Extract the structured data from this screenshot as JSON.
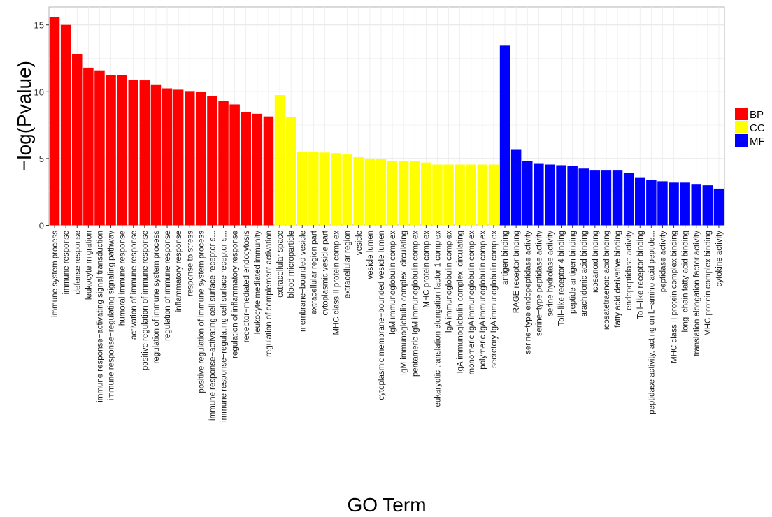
{
  "chart_data": {
    "type": "bar",
    "title": "",
    "xlabel": "GO Term",
    "ylabel": "−log(Pvalue)",
    "ylim": [
      0,
      16
    ],
    "yticks": [
      0,
      5,
      10,
      15
    ],
    "grid": true,
    "legend": {
      "placement": "right",
      "entries": [
        {
          "name": "BP",
          "color": "#ff0000"
        },
        {
          "name": "CC",
          "color": "#ffff00"
        },
        {
          "name": "MF",
          "color": "#0000ff"
        }
      ]
    },
    "categories": [
      "immune system process",
      "immune response",
      "defense response",
      "leukocyte migration",
      "immune response−activating signal transduction",
      "immune response−regulating signaling pathway",
      "humoral immune response",
      "activation of immune response",
      "positive regulation of immune response",
      "regulation of immune system process",
      "regulation of immune response",
      "inflammatory response",
      "response to stress",
      "positive regulation of immune system process",
      "immune response−activating cell surface receptor s...",
      "immune response−regulating cell surface receptor s...",
      "regulation of inflammatory response",
      "receptor−mediated endocytosis",
      "leukocyte mediated immunity",
      "regulation of complement activation",
      "extracellular space",
      "blood microparticle",
      "membrane−bounded vesicle",
      "extracellular region part",
      "cytoplasmic vesicle part",
      "MHC class II protein complex",
      "extracellular region",
      "vesicle",
      "vesicle lumen",
      "cytoplasmic membrane−bounded vesicle lumen",
      "IgM immunoglobulin complex",
      "IgM immunoglobulin complex, circulating",
      "pentameric IgM immunoglobulin complex",
      "MHC protein complex",
      "eukaryotic translation elongation factor 1 complex",
      "IgA immunoglobulin complex",
      "IgA immunoglobulin complex, circulating",
      "monomeric IgA immunoglobulin complex",
      "polymeric IgA immunoglobulin complex",
      "secretory IgA immunoglobulin complex",
      "antigen binding",
      "RAGE receptor binding",
      "serine−type endopeptidase activity",
      "serine−type peptidase activity",
      "serine hydrolase activity",
      "Toll−like receptor 4 binding",
      "peptide antigen binding",
      "arachidonic acid binding",
      "icosanoid binding",
      "icosatetraenoic acid binding",
      "fatty acid derivative binding",
      "endopeptidase activity",
      "Toll−like receptor binding",
      "peptidase activity, acting on L−amino acid peptide...",
      "peptidase activity",
      "MHC class II protein complex binding",
      "long−chain fatty acid binding",
      "translation elongation factor activity",
      "MHC protein complex binding",
      "cytokine activity"
    ],
    "groups": [
      "BP",
      "BP",
      "BP",
      "BP",
      "BP",
      "BP",
      "BP",
      "BP",
      "BP",
      "BP",
      "BP",
      "BP",
      "BP",
      "BP",
      "BP",
      "BP",
      "BP",
      "BP",
      "BP",
      "BP",
      "CC",
      "CC",
      "CC",
      "CC",
      "CC",
      "CC",
      "CC",
      "CC",
      "CC",
      "CC",
      "CC",
      "CC",
      "CC",
      "CC",
      "CC",
      "CC",
      "CC",
      "CC",
      "CC",
      "CC",
      "MF",
      "MF",
      "MF",
      "MF",
      "MF",
      "MF",
      "MF",
      "MF",
      "MF",
      "MF",
      "MF",
      "MF",
      "MF",
      "MF",
      "MF",
      "MF",
      "MF",
      "MF",
      "MF",
      "MF"
    ],
    "values": [
      15.6,
      15.0,
      12.8,
      11.8,
      11.6,
      11.25,
      11.25,
      10.9,
      10.85,
      10.55,
      10.25,
      10.15,
      10.05,
      10.0,
      9.65,
      9.3,
      9.05,
      8.45,
      8.35,
      8.15,
      9.75,
      8.1,
      5.5,
      5.5,
      5.45,
      5.4,
      5.3,
      5.1,
      5.0,
      4.95,
      4.8,
      4.8,
      4.8,
      4.7,
      4.55,
      4.55,
      4.55,
      4.55,
      4.55,
      4.55,
      13.45,
      5.7,
      4.8,
      4.6,
      4.55,
      4.5,
      4.45,
      4.25,
      4.1,
      4.1,
      4.1,
      3.95,
      3.55,
      3.4,
      3.3,
      3.2,
      3.2,
      3.05,
      3.0,
      2.75
    ]
  }
}
